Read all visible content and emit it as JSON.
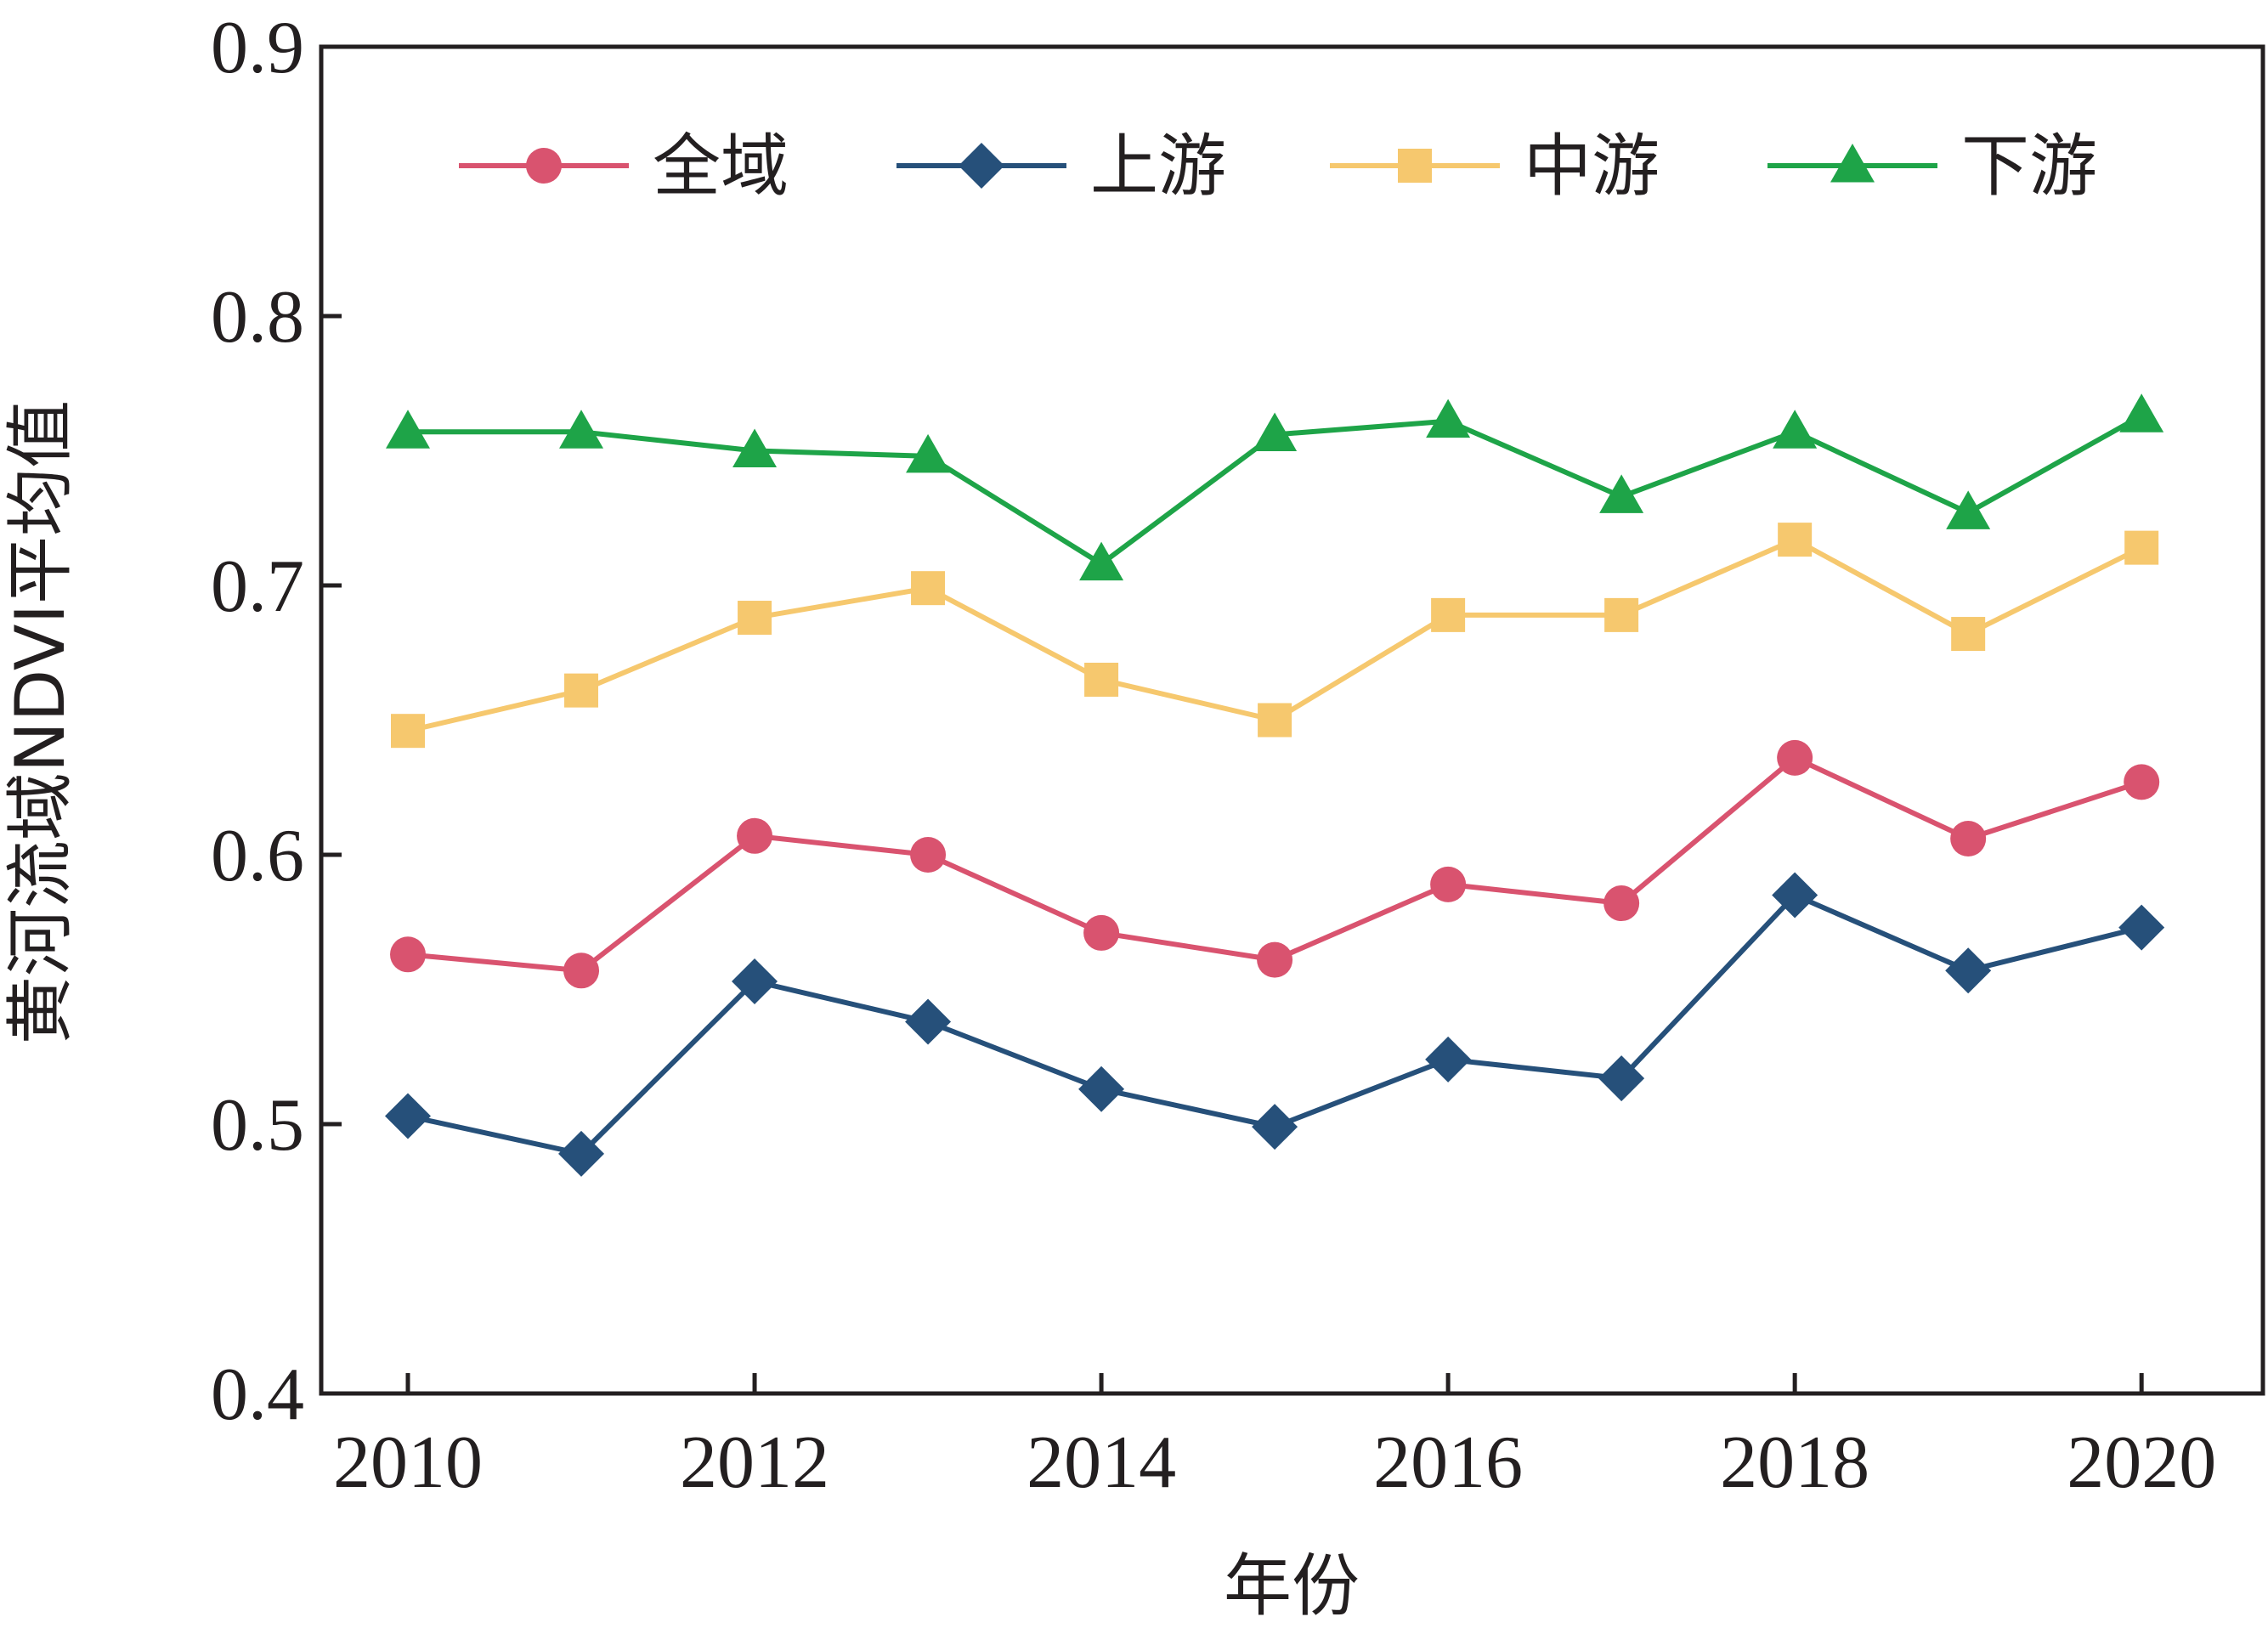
{
  "chart_data": {
    "type": "line",
    "xlabel": "年份",
    "ylabel": "黄河流域NDVI平均值",
    "ylim": [
      0.4,
      0.9
    ],
    "xlim": [
      2009.5,
      2020.7
    ],
    "x_ticks": [
      2010,
      2012,
      2014,
      2016,
      2018,
      2020
    ],
    "y_ticks": [
      0.4,
      0.5,
      0.6,
      0.7,
      0.8,
      0.9
    ],
    "y_tick_labels": [
      "0.4",
      "0.5",
      "0.6",
      "0.7",
      "0.8",
      "0.9"
    ],
    "x_tick_labels": [
      "2010",
      "2012",
      "2014",
      "2016",
      "2018",
      "2020"
    ],
    "x": [
      2010,
      2011,
      2012,
      2013,
      2014,
      2015,
      2016,
      2017,
      2018,
      2019,
      2020
    ],
    "grid": false,
    "legend_position": "top",
    "series": [
      {
        "name": "全域",
        "color": "#d9536f",
        "marker": "circle",
        "values": [
          0.563,
          0.557,
          0.607,
          0.6,
          0.571,
          0.561,
          0.589,
          0.582,
          0.636,
          0.606,
          0.627
        ]
      },
      {
        "name": "上游",
        "color": "#26507a",
        "marker": "diamond",
        "values": [
          0.503,
          0.489,
          0.553,
          0.538,
          0.513,
          0.499,
          0.524,
          0.517,
          0.585,
          0.557,
          0.573
        ]
      },
      {
        "name": "中游",
        "color": "#f6c86e",
        "marker": "square",
        "values": [
          0.646,
          0.661,
          0.688,
          0.699,
          0.665,
          0.65,
          0.689,
          0.689,
          0.717,
          0.682,
          0.714
        ]
      },
      {
        "name": "下游",
        "color": "#1ea448",
        "marker": "triangle",
        "values": [
          0.757,
          0.757,
          0.75,
          0.748,
          0.708,
          0.756,
          0.761,
          0.733,
          0.757,
          0.727,
          0.763
        ]
      }
    ]
  }
}
